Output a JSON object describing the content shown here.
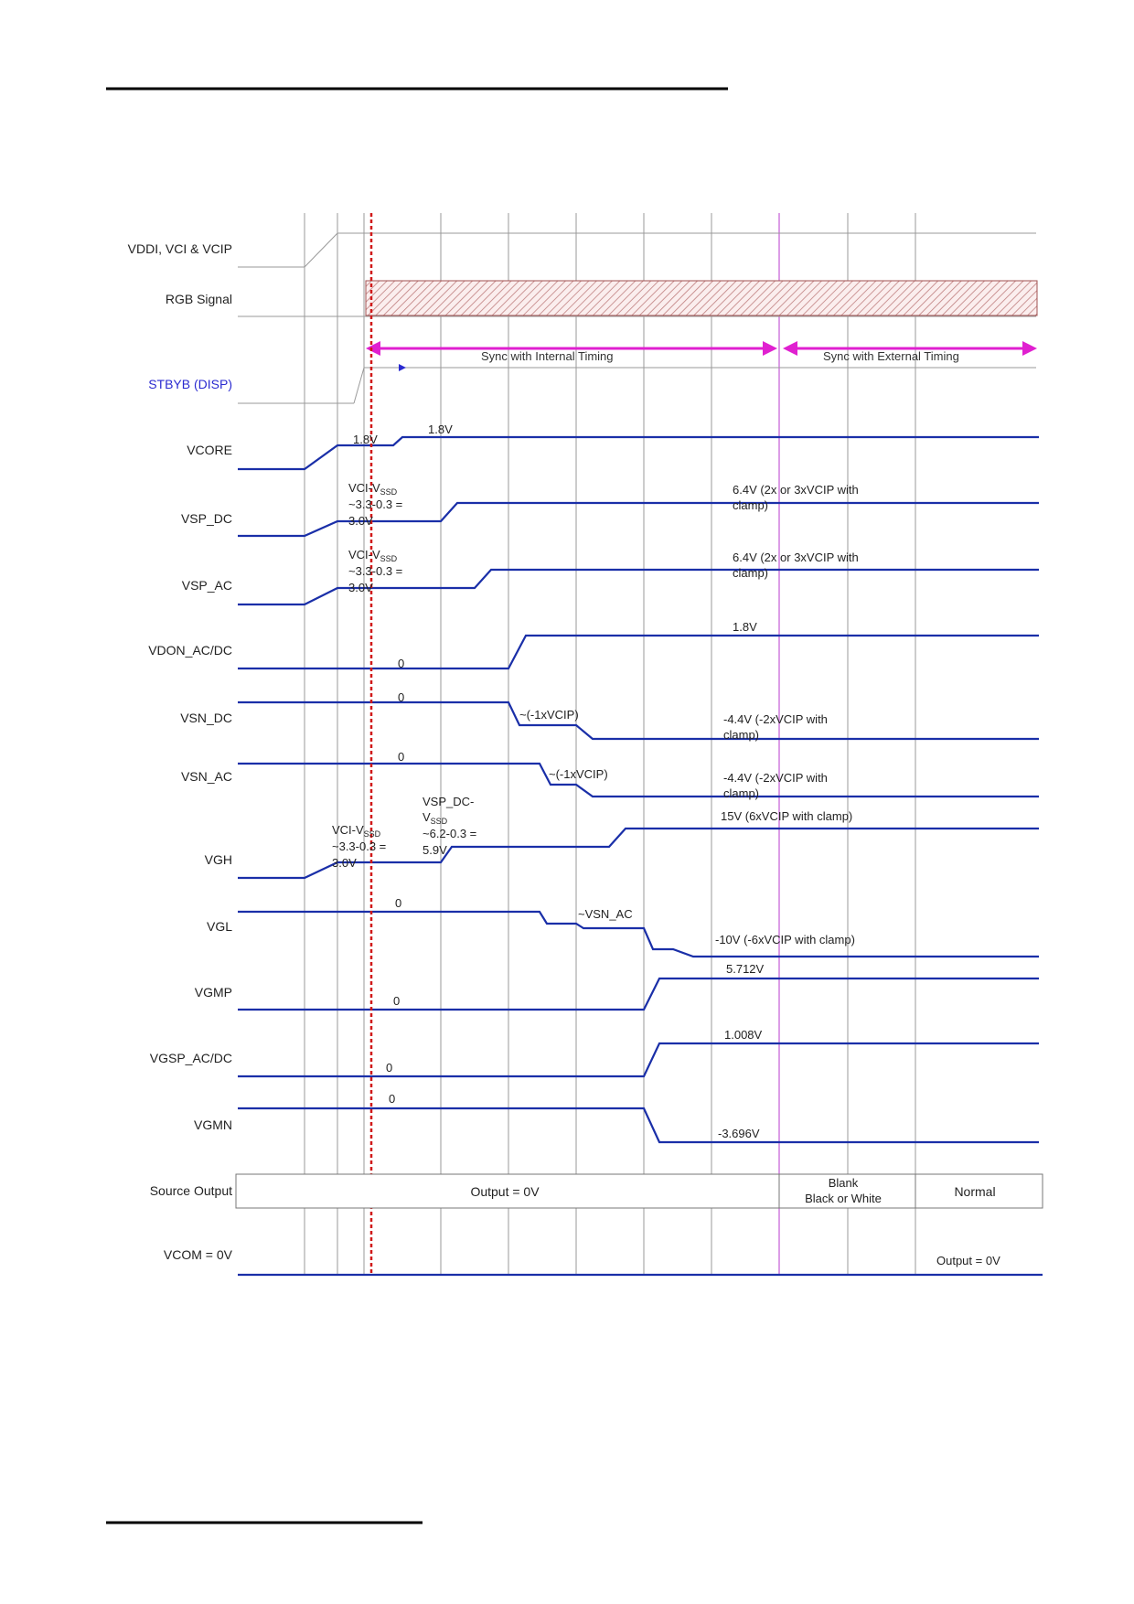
{
  "signals": {
    "vddi": "VDDI, VCI & VCIP",
    "rgb": "RGB Signal",
    "stbyb": "STBYB (DISP)",
    "vcore": "VCORE",
    "vsp_dc": "VSP_DC",
    "vsp_ac": "VSP_AC",
    "vdon": "VDON_AC/DC",
    "vsn_dc": "VSN_DC",
    "vsn_ac": "VSN_AC",
    "vgh": "VGH",
    "vgl": "VGL",
    "vgmp": "VGMP",
    "vgsp": "VGSP_AC/DC",
    "vgmn": "VGMN",
    "source": "Source Output",
    "vcom": "VCOM = 0V"
  },
  "bands": {
    "internal": "Sync with Internal Timing",
    "external": "Sync with External Timing"
  },
  "annotations": {
    "vcore_a": "1.8V",
    "vcore_b": "1.8V",
    "vsp_dc_a1": "VCI-V",
    "vsp_dc_a1_sub": "SSD",
    "vsp_dc_a2": "~3.3-0.3 =",
    "vsp_dc_a3": "3.0V",
    "vsp_dc_b1": "6.4V (2x or 3xVCIP with",
    "vsp_dc_b2": "clamp)",
    "vsp_ac_a1": "VCI-V",
    "vsp_ac_a1_sub": "SSD",
    "vsp_ac_a2": "~3.3-0.3 =",
    "vsp_ac_a3": "3.0V",
    "vsp_ac_b1": "6.4V (2x or 3xVCIP with",
    "vsp_ac_b2": "clamp)",
    "vdon_zero": "0",
    "vdon_hi": "1.8V",
    "vsn_dc_zero": "0",
    "vsn_dc_mid": "~(-1xVCIP)",
    "vsn_dc_b1": "-4.4V (-2xVCIP with",
    "vsn_dc_b2": "clamp)",
    "vsn_ac_zero": "0",
    "vsn_ac_mid": "~(-1xVCIP)",
    "vsn_ac_b1": "-4.4V (-2xVCIP with",
    "vsn_ac_b2": "clamp)",
    "vgh_a1": "VCI-V",
    "vgh_a1_sub": "SSD",
    "vgh_a2": "~3.3-0.3 =",
    "vgh_a3": "3.0V",
    "vgh_b1": "VSP_DC-",
    "vgh_b2": "V",
    "vgh_b2_sub": "SSD",
    "vgh_b3": "~6.2-0.3 =",
    "vgh_b4": "5.9V",
    "vgh_c": "15V (6xVCIP with clamp)",
    "vgl_zero": "0",
    "vgl_mid": "~VSN_AC",
    "vgl_end": "-10V (-6xVCIP with clamp)",
    "vgmp_zero": "0",
    "vgmp_hi": "5.712V",
    "vgsp_zero": "0",
    "vgsp_hi": "1.008V",
    "vgmn_zero": "0",
    "vgmn_lo": "-3.696V"
  },
  "source_output": {
    "output": "Output = 0V",
    "blank1": "Blank",
    "blank2": "Black or White",
    "normal": "Normal"
  },
  "vcom_output": "Output = 0V",
  "colors": {
    "waveform": "#1a2fa8",
    "band_arrow": "#e020d0",
    "marker": "#d01818",
    "grid": "#9a9a9a",
    "stbyb_label": "#2a2ad0"
  }
}
